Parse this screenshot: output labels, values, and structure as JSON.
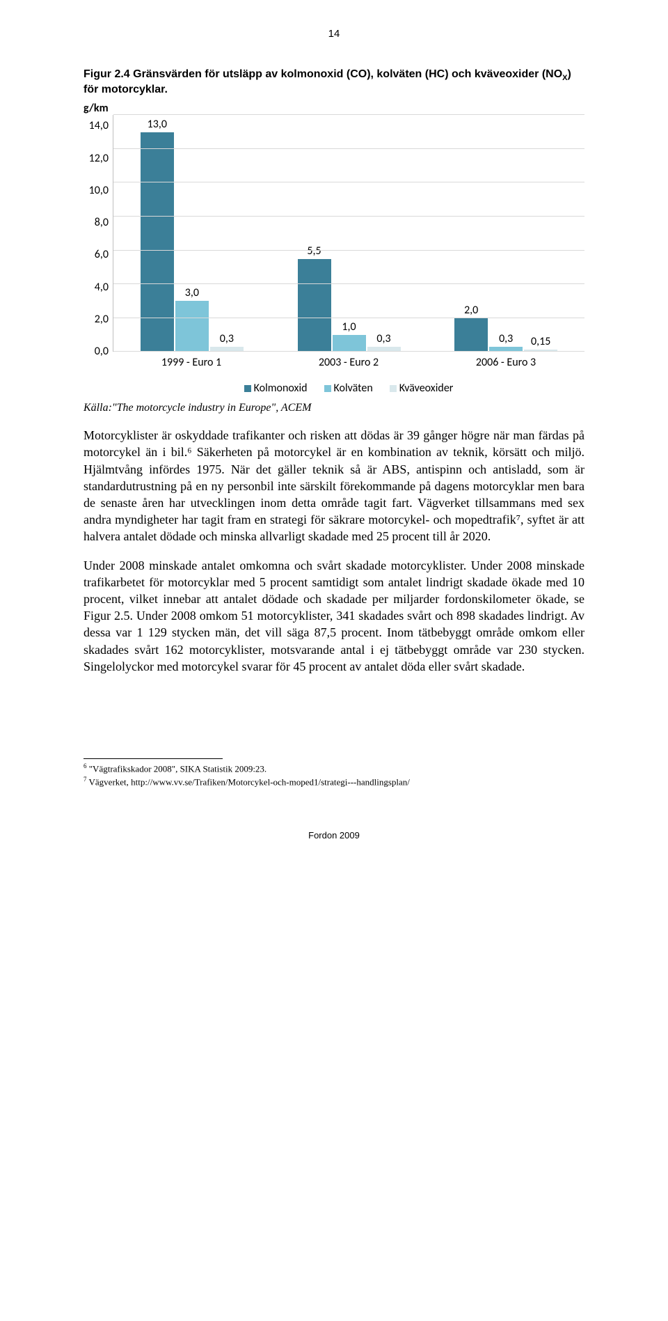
{
  "page_number": "14",
  "figure": {
    "caption_prefix": "Figur 2.4 Gränsvärden för utsläpp av kolmonoxid (CO), kolväten (HC) och kväveoxider (NO",
    "caption_sub": "X",
    "caption_suffix": ") för motorcyklar.",
    "y_axis_label": "g/km"
  },
  "chart": {
    "type": "grouped-bar",
    "ymax": 14.0,
    "ytick_step": 2.0,
    "yticks": [
      "14,0",
      "12,0",
      "10,0",
      "8,0",
      "6,0",
      "4,0",
      "2,0",
      "0,0"
    ],
    "categories": [
      "1999 - Euro 1",
      "2003 - Euro 2",
      "2006 - Euro 3"
    ],
    "series": [
      {
        "name": "Kolmonoxid",
        "color": "#3b7f98"
      },
      {
        "name": "Kolväten",
        "color": "#7ec5d9"
      },
      {
        "name": "Kväveoxider",
        "color": "#d9e8ec"
      }
    ],
    "data": [
      {
        "vals": [
          13.0,
          3.0,
          0.3
        ],
        "labels": [
          "13,0",
          "3,0",
          "0,3"
        ]
      },
      {
        "vals": [
          5.5,
          1.0,
          0.3
        ],
        "labels": [
          "5,5",
          "1,0",
          "0,3"
        ]
      },
      {
        "vals": [
          2.0,
          0.3,
          0.15
        ],
        "labels": [
          "2,0",
          "0,3",
          "0,15"
        ]
      }
    ],
    "grid_color": "#d9d9d9",
    "axis_color": "#bfbfbf",
    "label_fontsize": 16,
    "font_family": "Calibri"
  },
  "source_line": "Källa:\"The motorcycle industry in Europe\", ACEM",
  "paragraph1": "Motorcyklister är oskyddade trafikanter och risken att dödas är 39 gånger högre när man färdas på motorcykel än i bil.⁶ Säkerheten på motorcykel är en kombination av teknik, körsätt och miljö. Hjälmtvång infördes 1975. När det gäller teknik så är ABS, antispinn och antisladd, som är standardutrustning på en ny personbil inte särskilt förekommande på dagens motorcyklar men bara de senaste åren har utvecklingen inom detta område tagit fart. Vägverket tillsammans med sex andra myndigheter har tagit fram en strategi för säkrare motorcykel- och mopedtrafik⁷, syftet är att halvera antalet dödade och minska allvarligt skadade med 25 procent till år 2020.",
  "paragraph2": "Under 2008 minskade antalet omkomna och svårt skadade motorcyklister. Under 2008 minskade trafikarbetet för motorcyklar med 5 procent samtidigt som antalet lindrigt skadade ökade med 10 procent, vilket innebar att antalet dödade och skadade per miljarder fordonskilometer ökade, se Figur 2.5. Under 2008 omkom 51 motorcyklister, 341 skadades svårt och 898 skadades lindrigt. Av dessa var 1 129 stycken män, det vill säga 87,5 procent. Inom tätbebyggt område omkom eller skadades svårt 162 motorcyklister, motsvarande antal i ej tätbebyggt område var 230 stycken. Singelolyckor med motorcykel svarar för 45 procent av antalet döda eller svårt skadade.",
  "footnotes": [
    {
      "num": "6",
      "text": "\"Vägtrafikskador 2008\", SIKA Statistik 2009:23."
    },
    {
      "num": "7",
      "text": "Vägverket, http://www.vv.se/Trafiken/Motorcykel-och-moped1/strategi---handlingsplan/"
    }
  ],
  "footer": "Fordon 2009"
}
